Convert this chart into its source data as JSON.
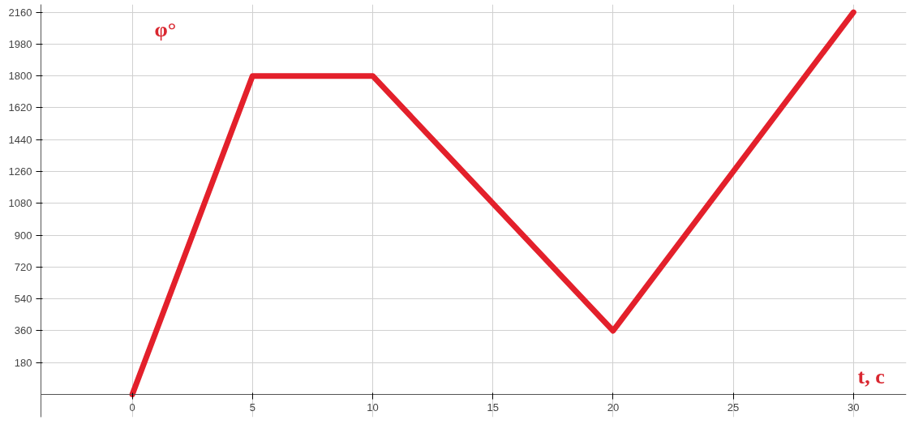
{
  "chart_data": {
    "type": "line",
    "xlabel": "t, c",
    "ylabel": "φ°",
    "x": [
      0,
      5,
      10,
      20,
      30
    ],
    "series": [
      {
        "color": "#e3202b",
        "values": [
          0,
          1800,
          1800,
          360,
          2160
        ]
      }
    ],
    "xlim": [
      -3.8,
      32.2
    ],
    "ylim": [
      -128,
      2204
    ],
    "xticks": [
      0,
      5,
      10,
      15,
      20,
      25,
      30
    ],
    "yticks": [
      180,
      360,
      540,
      720,
      900,
      1080,
      1260,
      1440,
      1620,
      1800,
      1980,
      2160
    ],
    "grid": true,
    "marker": "none",
    "line_style": "solid"
  }
}
